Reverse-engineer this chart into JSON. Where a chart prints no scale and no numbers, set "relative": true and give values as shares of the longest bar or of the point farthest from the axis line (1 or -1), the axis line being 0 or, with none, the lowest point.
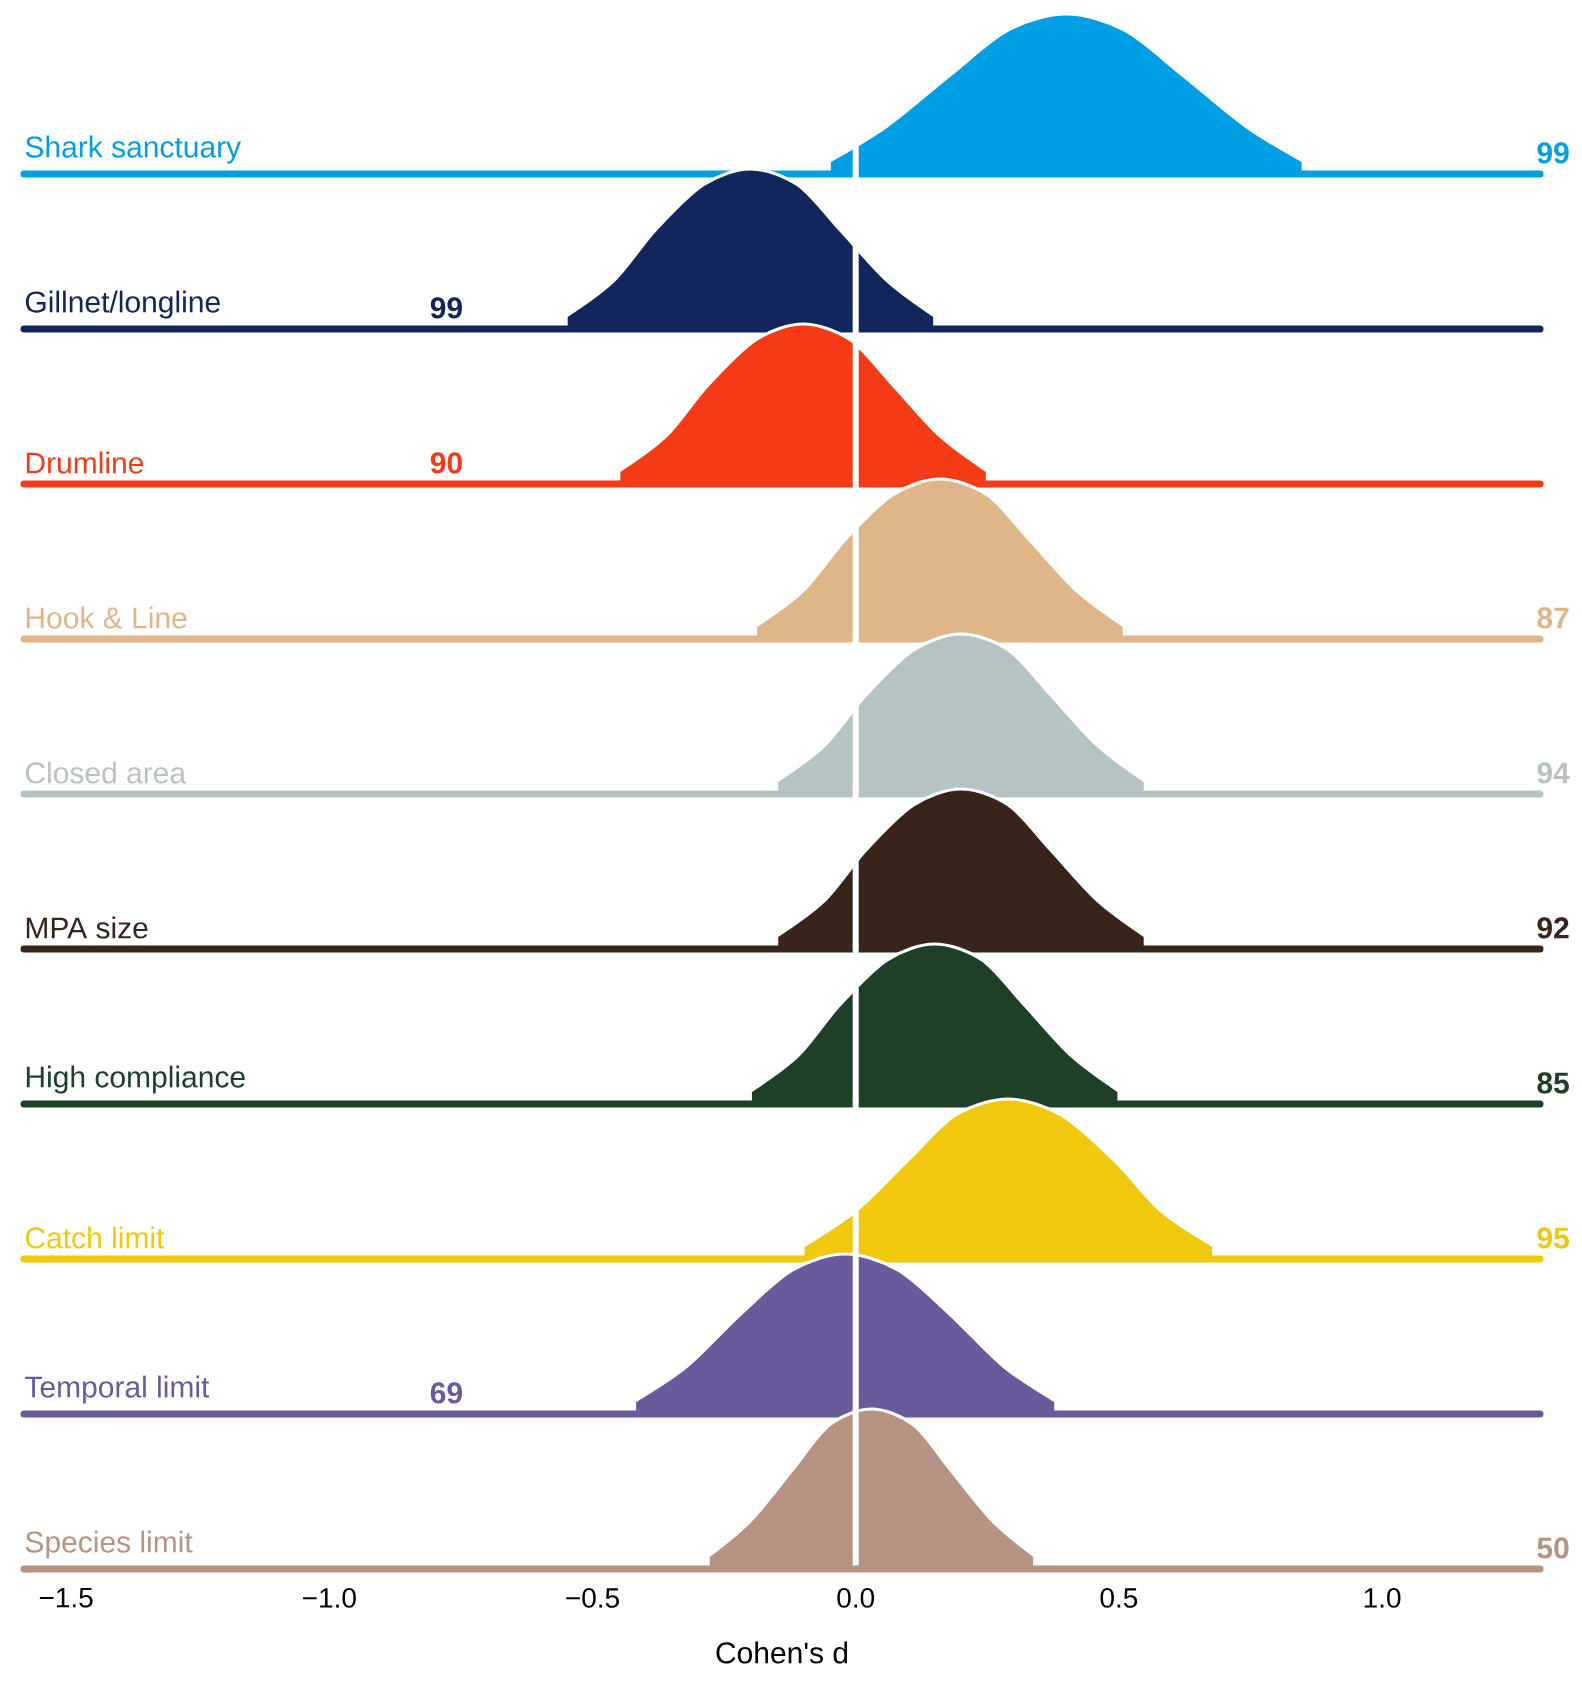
{
  "chart_data": [
    {
      "type": "area",
      "relative": true,
      "title": "Shark sanctuary",
      "color": "#009ee3",
      "xlim": [
        -1.58,
        1.3
      ],
      "tick_labels": false,
      "x": [
        -0.05,
        0.06,
        0.18,
        0.29,
        0.4,
        0.51,
        0.62,
        0.74,
        0.85
      ],
      "values": [
        0.08,
        0.3,
        0.62,
        0.9,
        1,
        0.9,
        0.62,
        0.3,
        0.08
      ],
      "annotations": [
        "99"
      ],
      "ref_lines": [
        {
          "axis": "x",
          "value": 0,
          "color": "#ffffff"
        }
      ]
    },
    {
      "type": "area",
      "relative": true,
      "title": "Gillnet/longline",
      "color": "#13265c",
      "xlim": [
        -1.58,
        1.3
      ],
      "tick_labels": false,
      "x": [
        -0.55,
        -0.46,
        -0.38,
        -0.29,
        -0.2,
        -0.11,
        -0.03,
        0.06,
        0.15
      ],
      "values": [
        0.08,
        0.3,
        0.62,
        0.9,
        1,
        0.9,
        0.62,
        0.3,
        0.08
      ],
      "annotations": [
        "99"
      ],
      "ref_lines": [
        {
          "axis": "x",
          "value": 0,
          "color": "#ffffff"
        }
      ]
    },
    {
      "type": "area",
      "relative": true,
      "title": "Drumline",
      "color": "#f43a17",
      "xlim": [
        -1.58,
        1.3
      ],
      "tick_labels": false,
      "x": [
        -0.45,
        -0.36,
        -0.28,
        -0.19,
        -0.1,
        -0.01,
        0.07,
        0.16,
        0.25
      ],
      "values": [
        0.08,
        0.3,
        0.62,
        0.9,
        1,
        0.9,
        0.62,
        0.3,
        0.08
      ],
      "annotations": [
        "90"
      ],
      "ref_lines": [
        {
          "axis": "x",
          "value": 0,
          "color": "#ffffff"
        }
      ]
    },
    {
      "type": "area",
      "relative": true,
      "title": "Hook & Line",
      "color": "#deb68a",
      "xlim": [
        -1.58,
        1.3
      ],
      "tick_labels": false,
      "x": [
        -0.19,
        -0.1,
        -0.02,
        0.07,
        0.16,
        0.25,
        0.33,
        0.42,
        0.51
      ],
      "values": [
        0.08,
        0.3,
        0.62,
        0.9,
        1,
        0.9,
        0.62,
        0.3,
        0.08
      ],
      "annotations": [
        "87"
      ],
      "ref_lines": [
        {
          "axis": "x",
          "value": 0,
          "color": "#ffffff"
        }
      ]
    },
    {
      "type": "area",
      "relative": true,
      "title": "Closed area",
      "color": "#b5c3c4",
      "xlim": [
        -1.58,
        1.3
      ],
      "tick_labels": false,
      "x": [
        -0.15,
        -0.06,
        0.02,
        0.11,
        0.2,
        0.29,
        0.37,
        0.46,
        0.55
      ],
      "values": [
        0.08,
        0.3,
        0.62,
        0.9,
        1,
        0.9,
        0.62,
        0.3,
        0.08
      ],
      "annotations": [
        "94"
      ],
      "ref_lines": [
        {
          "axis": "x",
          "value": 0,
          "color": "#ffffff"
        }
      ]
    },
    {
      "type": "area",
      "relative": true,
      "title": "MPA size",
      "color": "#37251b",
      "xlim": [
        -1.58,
        1.3
      ],
      "tick_labels": false,
      "x": [
        -0.15,
        -0.06,
        0.02,
        0.11,
        0.2,
        0.29,
        0.37,
        0.46,
        0.55
      ],
      "values": [
        0.08,
        0.3,
        0.62,
        0.9,
        1,
        0.9,
        0.62,
        0.3,
        0.08
      ],
      "annotations": [
        "92"
      ],
      "ref_lines": [
        {
          "axis": "x",
          "value": 0,
          "color": "#ffffff"
        }
      ]
    },
    {
      "type": "area",
      "relative": true,
      "title": "High compliance",
      "color": "#1d4027",
      "xlim": [
        -1.58,
        1.3
      ],
      "tick_labels": false,
      "x": [
        -0.2,
        -0.11,
        -0.03,
        0.06,
        0.15,
        0.24,
        0.32,
        0.41,
        0.5
      ],
      "values": [
        0.08,
        0.3,
        0.62,
        0.9,
        1,
        0.9,
        0.62,
        0.3,
        0.08
      ],
      "annotations": [
        "85"
      ],
      "ref_lines": [
        {
          "axis": "x",
          "value": 0,
          "color": "#ffffff"
        }
      ]
    },
    {
      "type": "area",
      "relative": true,
      "title": "Catch limit",
      "color": "#f0c80d",
      "xlim": [
        -1.58,
        1.3
      ],
      "tick_labels": false,
      "x": [
        -0.1,
        0,
        0.1,
        0.19,
        0.29,
        0.39,
        0.49,
        0.58,
        0.68
      ],
      "values": [
        0.08,
        0.3,
        0.62,
        0.9,
        1,
        0.9,
        0.62,
        0.3,
        0.08
      ],
      "annotations": [
        "95"
      ],
      "ref_lines": [
        {
          "axis": "x",
          "value": 0,
          "color": "#ffffff"
        }
      ]
    },
    {
      "type": "area",
      "relative": true,
      "title": "Temporal limit",
      "color": "#6a5a9b",
      "xlim": [
        -1.58,
        1.3
      ],
      "tick_labels": false,
      "x": [
        -0.42,
        -0.32,
        -0.22,
        -0.12,
        -0.02,
        0.08,
        0.18,
        0.28,
        0.38
      ],
      "values": [
        0.08,
        0.3,
        0.62,
        0.9,
        1,
        0.9,
        0.62,
        0.3,
        0.08
      ],
      "annotations": [
        "69"
      ],
      "ref_lines": [
        {
          "axis": "x",
          "value": 0,
          "color": "#ffffff"
        }
      ]
    },
    {
      "type": "area",
      "relative": true,
      "title": "Species limit",
      "color": "#b69382",
      "xlim": [
        -1.58,
        1.3
      ],
      "tick_labels": "x",
      "xlabel": "Cohen's d",
      "xticks": [
        {
          "value": -1.5,
          "label": "−1.5"
        },
        {
          "value": -1.0,
          "label": "−1.0"
        },
        {
          "value": -0.5,
          "label": "−0.5"
        },
        {
          "value": 0.0,
          "label": "0.0"
        },
        {
          "value": 0.5,
          "label": "0.5"
        },
        {
          "value": 1.0,
          "label": "1.0"
        }
      ],
      "x": [
        -0.28,
        -0.2,
        -0.12,
        -0.05,
        0.03,
        0.11,
        0.18,
        0.26,
        0.34
      ],
      "values": [
        0.08,
        0.3,
        0.62,
        0.9,
        1,
        0.9,
        0.62,
        0.3,
        0.08
      ],
      "annotations": [
        "50"
      ],
      "ref_lines": [
        {
          "axis": "x",
          "value": 0,
          "color": "#ffffff"
        }
      ]
    }
  ]
}
